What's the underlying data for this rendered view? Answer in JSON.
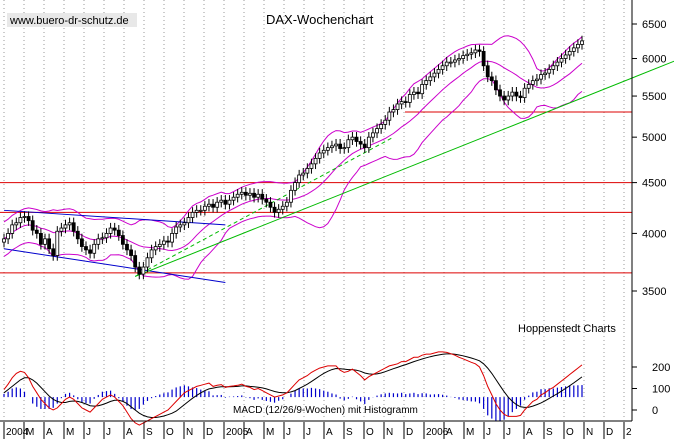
{
  "header": {
    "url": "www.buero-dr-schutz.de",
    "title": "DAX-Wochenchart",
    "source": "Hoppenstedt Charts",
    "macd_label": "MACD (12/26/9-Wochen) mit Histogramm"
  },
  "colors": {
    "candle": "#000000",
    "bollinger": "#cc00cc",
    "support_lines": "#dd0000",
    "channel_lines": "#0000cc",
    "trend_lines": "#00bb00",
    "macd_line": "#dd0000",
    "signal_line": "#000000",
    "histogram": "#0000cc",
    "grid": "#999999"
  },
  "chart_data": [
    {
      "type": "candlestick",
      "title": "DAX-Wochenchart",
      "y_ticks": [
        3500,
        4000,
        4500,
        5000,
        5500,
        6000,
        6500
      ],
      "ylim": [
        3150,
        6750
      ],
      "grid": "vertical dotted",
      "x_labels": [
        "2004",
        "M",
        "A",
        "M",
        "J",
        "J",
        "A",
        "S",
        "O",
        "N",
        "D",
        "2005",
        "A",
        "M",
        "J",
        "J",
        "A",
        "S",
        "O",
        "N",
        "D",
        "2006",
        "A",
        "M",
        "J",
        "J",
        "A",
        "S",
        "O",
        "N",
        "D",
        "2"
      ],
      "weekly_close": [
        3950,
        4000,
        4080,
        4100,
        4150,
        4160,
        4120,
        4030,
        4000,
        3900,
        3950,
        3860,
        3800,
        4020,
        4050,
        4080,
        4100,
        4020,
        3950,
        3880,
        3850,
        3820,
        3900,
        3950,
        3960,
        4000,
        4050,
        4030,
        3980,
        3900,
        3850,
        3800,
        3700,
        3640,
        3700,
        3780,
        3850,
        3880,
        3900,
        3930,
        3920,
        4000,
        4060,
        4080,
        4100,
        4150,
        4200,
        4220,
        4220,
        4260,
        4280,
        4250,
        4300,
        4320,
        4280,
        4320,
        4350,
        4380,
        4400,
        4370,
        4390,
        4350,
        4380,
        4330,
        4300,
        4250,
        4200,
        4230,
        4260,
        4300,
        4420,
        4500,
        4580,
        4600,
        4650,
        4700,
        4760,
        4820,
        4850,
        4880,
        4900,
        4920,
        4870,
        4880,
        4970,
        5000,
        4950,
        4920,
        4880,
        5000,
        5050,
        5100,
        5150,
        5200,
        5300,
        5330,
        5400,
        5430,
        5420,
        5520,
        5550,
        5530,
        5650,
        5700,
        5750,
        5800,
        5850,
        5900,
        5950,
        5950,
        5980,
        6000,
        6040,
        6060,
        6080,
        6120,
        6100,
        5900,
        5750,
        5700,
        5580,
        5500,
        5450,
        5500,
        5550,
        5500,
        5480,
        5600,
        5650,
        5700,
        5720,
        5780,
        5800,
        5850,
        5900,
        5950,
        6000,
        6050,
        6100,
        6150,
        6200,
        6250
      ],
      "bollinger": "upper, middle and lower bands",
      "horizontal_lines": [
        3650,
        4200,
        4500,
        5300
      ],
      "channel_lines": [
        {
          "from": [
            0,
            4220
          ],
          "to": [
            54,
            4080
          ]
        },
        {
          "from": [
            0,
            3860
          ],
          "to": [
            54,
            3570
          ]
        }
      ],
      "trend_lines": [
        {
          "from": [
            32,
            3620
          ],
          "to": [
            158,
            5900
          ],
          "style": "solid"
        },
        {
          "from": [
            32,
            3620
          ],
          "to": [
            95,
            5000
          ],
          "style": "dashed"
        }
      ]
    },
    {
      "type": "macd",
      "title": "MACD (12/26/9-Wochen) mit Histogramm",
      "y_ticks": [
        0,
        100,
        200
      ],
      "ylim": [
        -50,
        240
      ],
      "macd": [
        95,
        120,
        150,
        170,
        180,
        175,
        150,
        110,
        80,
        50,
        30,
        10,
        0,
        10,
        30,
        50,
        60,
        50,
        30,
        10,
        0,
        -10,
        10,
        30,
        50,
        60,
        70,
        60,
        40,
        20,
        -10,
        -40,
        -60,
        -70,
        -60,
        -50,
        -40,
        -30,
        -20,
        -10,
        0,
        20,
        40,
        60,
        80,
        90,
        100,
        110,
        115,
        120,
        125,
        110,
        115,
        118,
        105,
        110,
        112,
        115,
        120,
        110,
        105,
        95,
        100,
        90,
        80,
        70,
        60,
        65,
        70,
        80,
        100,
        120,
        140,
        150,
        160,
        175,
        185,
        195,
        200,
        205,
        205,
        205,
        185,
        175,
        180,
        190,
        175,
        160,
        140,
        155,
        165,
        175,
        185,
        195,
        205,
        210,
        215,
        225,
        225,
        235,
        245,
        245,
        255,
        260,
        260,
        265,
        270,
        270,
        268,
        262,
        255,
        245,
        238,
        230,
        222,
        215,
        200,
        160,
        110,
        70,
        30,
        0,
        -20,
        -30,
        -30,
        -30,
        -25,
        0,
        20,
        40,
        50,
        70,
        80,
        95,
        105,
        120,
        135,
        150,
        165,
        180,
        195,
        210
      ],
      "signal": [
        80,
        95,
        110,
        125,
        140,
        150,
        150,
        140,
        125,
        105,
        85,
        65,
        50,
        40,
        35,
        35,
        40,
        42,
        40,
        35,
        28,
        20,
        18,
        20,
        25,
        32,
        40,
        45,
        45,
        40,
        30,
        15,
        0,
        -15,
        -25,
        -32,
        -35,
        -35,
        -32,
        -28,
        -22,
        -15,
        -5,
        10,
        25,
        40,
        55,
        68,
        80,
        90,
        98,
        102,
        106,
        108,
        108,
        108,
        109,
        110,
        112,
        112,
        110,
        108,
        106,
        103,
        98,
        92,
        86,
        82,
        80,
        80,
        84,
        90,
        100,
        110,
        120,
        132,
        145,
        158,
        170,
        180,
        188,
        193,
        192,
        190,
        188,
        188,
        185,
        180,
        172,
        168,
        166,
        168,
        172,
        178,
        185,
        192,
        198,
        205,
        211,
        218,
        225,
        231,
        237,
        243,
        248,
        252,
        256,
        259,
        261,
        261,
        259,
        256,
        252,
        247,
        242,
        236,
        229,
        215,
        195,
        170,
        142,
        113,
        85,
        60,
        40,
        25,
        15,
        12,
        13,
        18,
        25,
        33,
        43,
        54,
        65,
        76,
        88,
        100,
        113,
        126,
        140,
        154
      ]
    }
  ]
}
